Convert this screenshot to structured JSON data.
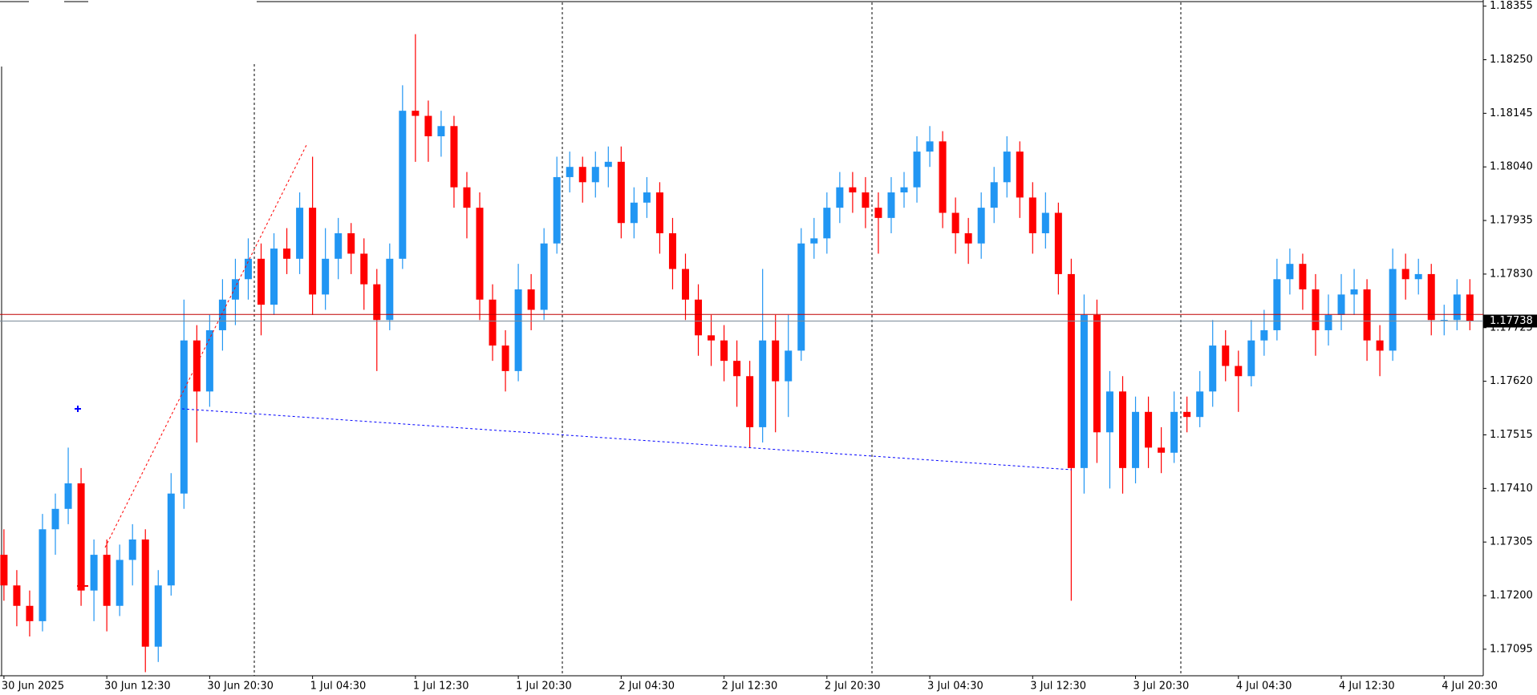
{
  "chart_data": {
    "type": "candlestick",
    "categories": [
      "30 Jun 2025",
      null,
      null,
      null,
      null,
      null,
      null,
      null,
      "30 Jun 12:30",
      null,
      null,
      null,
      null,
      null,
      null,
      null,
      "30 Jun 20:30",
      null,
      null,
      null,
      null,
      null,
      null,
      null,
      "1 Jul 04:30",
      null,
      null,
      null,
      null,
      null,
      null,
      null,
      "1 Jul 12:30",
      null,
      null,
      null,
      null,
      null,
      null,
      null,
      "1 Jul 20:30",
      null,
      null,
      null,
      null,
      null,
      null,
      null,
      "2 Jul 04:30",
      null,
      null,
      null,
      null,
      null,
      null,
      null,
      "2 Jul 12:30",
      null,
      null,
      null,
      null,
      null,
      null,
      null,
      "2 Jul 20:30",
      null,
      null,
      null,
      null,
      null,
      null,
      null,
      "3 Jul 04:30",
      null,
      null,
      null,
      null,
      null,
      null,
      null,
      "3 Jul 12:30",
      null,
      null,
      null,
      null,
      null,
      null,
      null,
      "3 Jul 20:30",
      null,
      null,
      null,
      null,
      null,
      null,
      null,
      "4 Jul 04:30",
      null,
      null,
      null,
      null,
      null,
      null,
      null,
      "4 Jul 12:30",
      null,
      null,
      null,
      null,
      null,
      null,
      null,
      "4 Jul 20:30",
      null,
      null
    ],
    "open": [
      1.1728,
      1.1722,
      1.1718,
      1.1715,
      1.1733,
      1.1737,
      1.1742,
      1.1721,
      1.1728,
      1.1718,
      1.1727,
      1.1731,
      1.171,
      1.1722,
      1.174,
      1.177,
      1.176,
      1.1772,
      1.1778,
      1.1782,
      1.1786,
      1.1777,
      1.1788,
      1.1786,
      1.1796,
      1.1779,
      1.1786,
      1.1791,
      1.1787,
      1.1781,
      1.1774,
      1.1786,
      1.1815,
      1.1814,
      1.181,
      1.1812,
      1.18,
      1.1796,
      1.1778,
      1.1769,
      1.1764,
      1.178,
      1.1776,
      1.1789,
      1.1802,
      1.1804,
      1.1801,
      1.1804,
      1.1805,
      1.1793,
      1.1797,
      1.1799,
      1.1791,
      1.1784,
      1.1778,
      1.1771,
      1.177,
      1.1766,
      1.1763,
      1.1753,
      1.177,
      1.1762,
      1.1768,
      1.1789,
      1.179,
      1.1796,
      1.18,
      1.1799,
      1.1796,
      1.1794,
      1.1799,
      1.18,
      1.1807,
      1.1809,
      1.1795,
      1.1791,
      1.1789,
      1.1796,
      1.1801,
      1.1807,
      1.1798,
      1.1791,
      1.1795,
      1.1783,
      1.1745,
      1.1775,
      1.1752,
      1.176,
      1.1745,
      1.1756,
      1.1749,
      1.1748,
      1.1756,
      1.1755,
      1.176,
      1.1769,
      1.1765,
      1.1763,
      1.177,
      1.1772,
      1.1782,
      1.1785,
      1.178,
      1.1772,
      1.1775,
      1.1779,
      1.178,
      1.177,
      1.1768,
      1.1784,
      1.1782,
      1.1783,
      1.1774,
      1.1774,
      1.1779
    ],
    "high": [
      1.1733,
      1.1725,
      1.1721,
      1.1736,
      1.174,
      1.1749,
      1.1745,
      1.1731,
      1.1731,
      1.173,
      1.1734,
      1.1733,
      1.1725,
      1.1744,
      1.1778,
      1.1773,
      1.1775,
      1.1782,
      1.1786,
      1.179,
      1.1789,
      1.1791,
      1.1792,
      1.1799,
      1.1806,
      1.1792,
      1.1794,
      1.1793,
      1.179,
      1.1784,
      1.1789,
      1.182,
      1.183,
      1.1817,
      1.1815,
      1.1814,
      1.1803,
      1.1799,
      1.1781,
      1.1772,
      1.1785,
      1.1783,
      1.1792,
      1.1806,
      1.1807,
      1.1806,
      1.1807,
      1.1808,
      1.1808,
      1.18,
      1.1802,
      1.1801,
      1.1794,
      1.1787,
      1.1781,
      1.1775,
      1.1773,
      1.177,
      1.1766,
      1.1784,
      1.1775,
      1.1775,
      1.1792,
      1.1794,
      1.1799,
      1.1803,
      1.1803,
      1.1802,
      1.1799,
      1.1802,
      1.1803,
      1.181,
      1.1812,
      1.1811,
      1.1798,
      1.1794,
      1.1799,
      1.1804,
      1.181,
      1.1809,
      1.1801,
      1.1799,
      1.1797,
      1.1786,
      1.1779,
      1.1778,
      1.1764,
      1.1763,
      1.1759,
      1.1759,
      1.1753,
      1.176,
      1.1759,
      1.1764,
      1.1774,
      1.1772,
      1.1768,
      1.1774,
      1.1776,
      1.1786,
      1.1788,
      1.1787,
      1.1783,
      1.1779,
      1.1783,
      1.1784,
      1.1782,
      1.1773,
      1.1788,
      1.1787,
      1.1786,
      1.1785,
      1.1777,
      1.1782,
      1.1782
    ],
    "low": [
      1.1719,
      1.1714,
      1.1712,
      1.1713,
      1.1728,
      1.1734,
      1.1718,
      1.1715,
      1.1713,
      1.1716,
      1.1722,
      1.1705,
      1.1707,
      1.172,
      1.1737,
      1.175,
      1.1757,
      1.1768,
      1.1773,
      1.1778,
      1.1771,
      1.1775,
      1.1783,
      1.1783,
      1.1775,
      1.1776,
      1.1782,
      1.1783,
      1.1776,
      1.1764,
      1.1772,
      1.1784,
      1.1805,
      1.1805,
      1.1806,
      1.1796,
      1.179,
      1.1774,
      1.1766,
      1.176,
      1.1762,
      1.1772,
      1.1774,
      1.1787,
      1.1799,
      1.1797,
      1.1798,
      1.18,
      1.179,
      1.179,
      1.1794,
      1.1787,
      1.178,
      1.1774,
      1.1767,
      1.1765,
      1.1762,
      1.1757,
      1.1749,
      1.175,
      1.1752,
      1.1755,
      1.1766,
      1.1786,
      1.1787,
      1.1793,
      1.1795,
      1.1792,
      1.1787,
      1.1791,
      1.1796,
      1.1797,
      1.1804,
      1.1792,
      1.1787,
      1.1785,
      1.1786,
      1.1793,
      1.1798,
      1.1794,
      1.1787,
      1.1788,
      1.1779,
      1.1719,
      1.174,
      1.1746,
      1.1741,
      1.174,
      1.1742,
      1.1745,
      1.1744,
      1.1746,
      1.1752,
      1.1753,
      1.1757,
      1.1762,
      1.1756,
      1.1761,
      1.1767,
      1.177,
      1.1779,
      1.1776,
      1.1767,
      1.1769,
      1.1772,
      1.1775,
      1.1766,
      1.1763,
      1.1766,
      1.1778,
      1.1779,
      1.1771,
      1.1771,
      1.1772,
      1.1772
    ],
    "close": [
      1.1722,
      1.1718,
      1.1715,
      1.1733,
      1.1737,
      1.1742,
      1.1721,
      1.1728,
      1.1718,
      1.1727,
      1.1731,
      1.171,
      1.1722,
      1.174,
      1.177,
      1.176,
      1.1772,
      1.1778,
      1.1782,
      1.1786,
      1.1777,
      1.1788,
      1.1786,
      1.1796,
      1.1779,
      1.1786,
      1.1791,
      1.1787,
      1.1781,
      1.1774,
      1.1786,
      1.1815,
      1.1814,
      1.181,
      1.1812,
      1.18,
      1.1796,
      1.1778,
      1.1769,
      1.1764,
      1.178,
      1.1776,
      1.1789,
      1.1802,
      1.1804,
      1.1801,
      1.1804,
      1.1805,
      1.1793,
      1.1797,
      1.1799,
      1.1791,
      1.1784,
      1.1778,
      1.1771,
      1.177,
      1.1766,
      1.1763,
      1.1753,
      1.177,
      1.1762,
      1.1768,
      1.1789,
      1.179,
      1.1796,
      1.18,
      1.1799,
      1.1796,
      1.1794,
      1.1799,
      1.18,
      1.1807,
      1.1809,
      1.1795,
      1.1791,
      1.1789,
      1.1796,
      1.1801,
      1.1807,
      1.1798,
      1.1791,
      1.1795,
      1.1783,
      1.1745,
      1.1775,
      1.1752,
      1.176,
      1.1745,
      1.1756,
      1.1749,
      1.1748,
      1.1756,
      1.1755,
      1.176,
      1.1769,
      1.1765,
      1.1763,
      1.177,
      1.1772,
      1.1782,
      1.1785,
      1.178,
      1.1772,
      1.1775,
      1.1779,
      1.178,
      1.177,
      1.1768,
      1.1784,
      1.1782,
      1.1783,
      1.1774,
      1.1774,
      1.1779,
      1.17738
    ],
    "up_color": "#2196f3",
    "down_color": "#ff0000",
    "ask": 1.17751,
    "ylim": [
      1.17043,
      1.18367
    ],
    "yticks": [
      1.18355,
      {
        "value": 1.1825,
        "label": "1.18250"
      },
      1.18145,
      {
        "value": 1.1804,
        "label": "1.18040"
      },
      1.17935,
      {
        "value": 1.1783,
        "label": "1.17830"
      },
      1.17725,
      {
        "value": 1.1762,
        "label": "1.17620"
      },
      1.17515,
      {
        "value": 1.1741,
        "label": "1.17410"
      },
      1.17305,
      {
        "value": 1.172,
        "label": "1.17200"
      },
      1.17095
    ],
    "grid": false
  }
}
